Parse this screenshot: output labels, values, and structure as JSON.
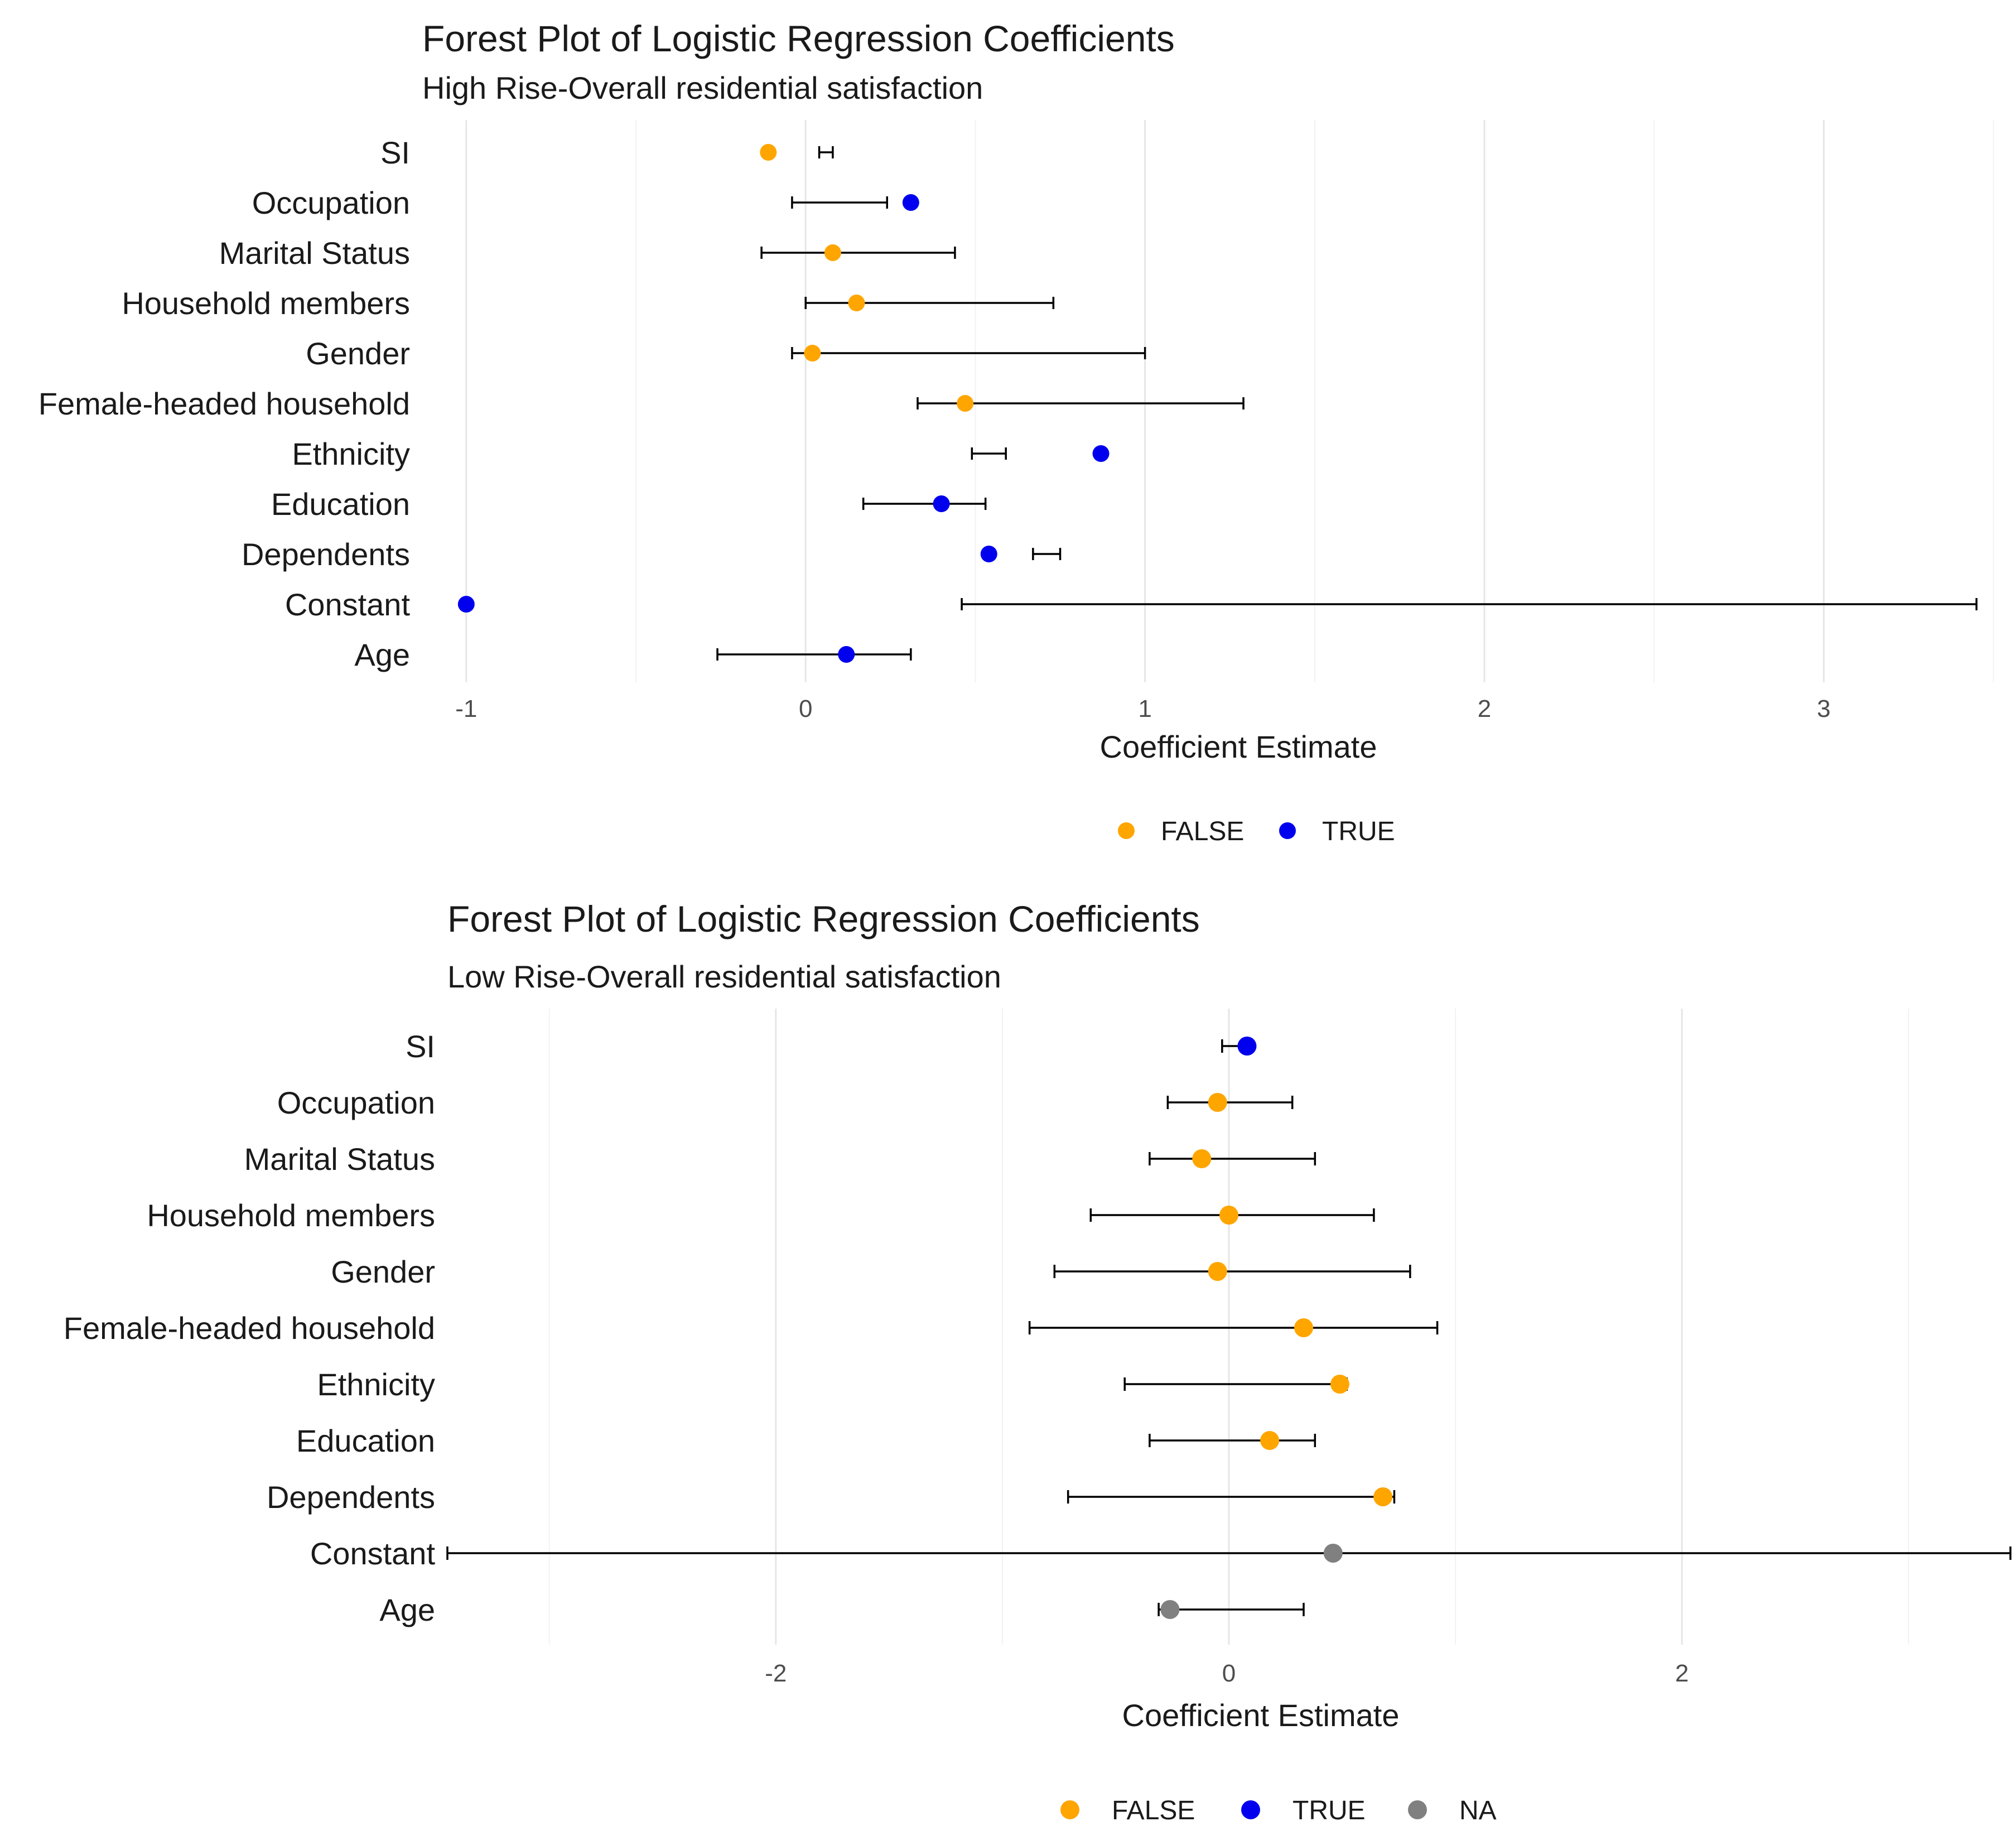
{
  "colors": {
    "FALSE": "#FFA500",
    "TRUE": "#0000EE",
    "NA": "#808080"
  },
  "chart_data": [
    {
      "type": "forest",
      "title": "Forest Plot of Logistic Regression Coefficients",
      "subtitle": "High Rise-Overall residential satisfaction",
      "xlabel": "Coefficient Estimate",
      "xlim": [
        -1.1,
        3.55
      ],
      "xticks": [
        -1,
        0,
        1,
        2,
        3
      ],
      "xtick_labels": [
        "-1",
        "0",
        "1",
        "2",
        "3"
      ],
      "legend_position": "bottom",
      "legend": [
        "FALSE",
        "TRUE"
      ],
      "variables": [
        "SI",
        "Occupation",
        "Marital Status",
        "Household members",
        "Gender",
        "Female-headed household",
        "Ethnicity",
        "Education",
        "Dependents",
        "Constant",
        "Age"
      ],
      "estimates": [
        -0.11,
        0.31,
        0.08,
        0.15,
        0.02,
        0.47,
        0.87,
        0.4,
        0.54,
        -1.0,
        0.12
      ],
      "ci_low": [
        0.04,
        -0.04,
        -0.13,
        0.0,
        -0.04,
        0.33,
        0.49,
        0.17,
        0.67,
        0.46,
        -0.26
      ],
      "ci_high": [
        0.08,
        0.24,
        0.44,
        0.73,
        1.0,
        1.29,
        0.59,
        0.53,
        0.75,
        3.45,
        0.31
      ],
      "significant": [
        "FALSE",
        "TRUE",
        "FALSE",
        "FALSE",
        "FALSE",
        "FALSE",
        "TRUE",
        "TRUE",
        "TRUE",
        "TRUE",
        "TRUE"
      ]
    },
    {
      "type": "forest",
      "title": "Forest Plot of Logistic Regression Coefficients",
      "subtitle": "Low Rise-Overall residential satisfaction",
      "xlabel": "Coefficient Estimate",
      "xlim": [
        -3.45,
        3.45
      ],
      "xticks": [
        -2,
        0,
        2
      ],
      "xtick_labels": [
        "-2",
        "0",
        "2"
      ],
      "legend_position": "bottom",
      "legend": [
        "FALSE",
        "TRUE",
        "NA"
      ],
      "variables": [
        "SI",
        "Occupation",
        "Marital Status",
        "Household members",
        "Gender",
        "Female-headed household",
        "Ethnicity",
        "Education",
        "Dependents",
        "Constant",
        "Age"
      ],
      "estimates": [
        0.08,
        -0.05,
        -0.12,
        0.0,
        -0.05,
        0.33,
        0.49,
        0.18,
        0.68,
        0.46,
        -0.26
      ],
      "ci_low": [
        -0.03,
        -0.27,
        -0.35,
        -0.61,
        -0.77,
        -0.88,
        -0.46,
        -0.35,
        -0.71,
        -3.45,
        -0.31
      ],
      "ci_high": [
        0.1,
        0.28,
        0.38,
        0.64,
        0.8,
        0.92,
        0.52,
        0.38,
        0.73,
        3.45,
        0.33
      ],
      "significant": [
        "TRUE",
        "FALSE",
        "FALSE",
        "FALSE",
        "FALSE",
        "FALSE",
        "FALSE",
        "FALSE",
        "FALSE",
        "NA",
        "NA"
      ]
    }
  ]
}
